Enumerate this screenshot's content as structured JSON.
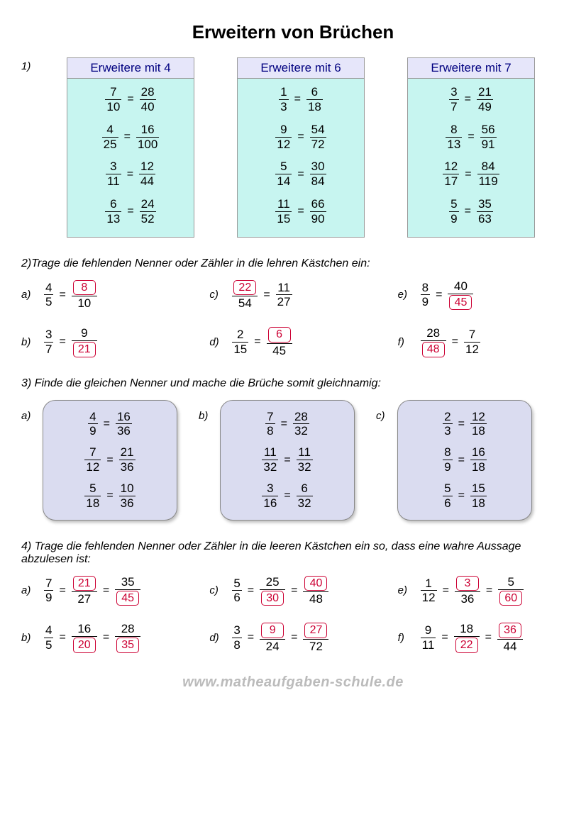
{
  "title": "Erweitern von Brüchen",
  "footer": "www.matheaufgaben-schule.de",
  "section1": {
    "num": "1)",
    "cards": [
      {
        "head": "Erweitere mit 4",
        "rows": [
          {
            "a": {
              "n": "7",
              "d": "10"
            },
            "b": {
              "n": "28",
              "d": "40"
            }
          },
          {
            "a": {
              "n": "4",
              "d": "25"
            },
            "b": {
              "n": "16",
              "d": "100"
            }
          },
          {
            "a": {
              "n": "3",
              "d": "11"
            },
            "b": {
              "n": "12",
              "d": "44"
            }
          },
          {
            "a": {
              "n": "6",
              "d": "13"
            },
            "b": {
              "n": "24",
              "d": "52"
            }
          }
        ]
      },
      {
        "head": "Erweitere mit 6",
        "rows": [
          {
            "a": {
              "n": "1",
              "d": "3"
            },
            "b": {
              "n": "6",
              "d": "18"
            }
          },
          {
            "a": {
              "n": "9",
              "d": "12"
            },
            "b": {
              "n": "54",
              "d": "72"
            }
          },
          {
            "a": {
              "n": "5",
              "d": "14"
            },
            "b": {
              "n": "30",
              "d": "84"
            }
          },
          {
            "a": {
              "n": "11",
              "d": "15"
            },
            "b": {
              "n": "66",
              "d": "90"
            }
          }
        ]
      },
      {
        "head": "Erweitere mit 7",
        "rows": [
          {
            "a": {
              "n": "3",
              "d": "7"
            },
            "b": {
              "n": "21",
              "d": "49"
            }
          },
          {
            "a": {
              "n": "8",
              "d": "13"
            },
            "b": {
              "n": "56",
              "d": "91"
            }
          },
          {
            "a": {
              "n": "12",
              "d": "17"
            },
            "b": {
              "n": "84",
              "d": "119"
            }
          },
          {
            "a": {
              "n": "5",
              "d": "9"
            },
            "b": {
              "n": "35",
              "d": "63"
            }
          }
        ]
      }
    ]
  },
  "section2": {
    "prompt": "2)Trage die fehlenden Nenner oder Zähler in die lehren Kästchen ein:",
    "items": [
      {
        "l": "a)",
        "a": {
          "n": "4",
          "d": "5"
        },
        "b": {
          "n": "8",
          "d": "10",
          "box": "n"
        }
      },
      {
        "l": "c)",
        "a": {
          "n": "22",
          "d": "54",
          "box": "n"
        },
        "b": {
          "n": "11",
          "d": "27"
        }
      },
      {
        "l": "e)",
        "a": {
          "n": "8",
          "d": "9"
        },
        "b": {
          "n": "40",
          "d": "45",
          "box": "d"
        }
      },
      {
        "l": "b)",
        "a": {
          "n": "3",
          "d": "7"
        },
        "b": {
          "n": "9",
          "d": "21",
          "box": "d"
        }
      },
      {
        "l": "d)",
        "a": {
          "n": "2",
          "d": "15"
        },
        "b": {
          "n": "6",
          "d": "45",
          "box": "n"
        }
      },
      {
        "l": "f)",
        "a": {
          "n": "28",
          "d": "48",
          "box": "d"
        },
        "b": {
          "n": "7",
          "d": "12"
        }
      }
    ]
  },
  "section3": {
    "prompt": "3) Finde die gleichen Nenner und mache die Brüche somit gleichnamig:",
    "panels": [
      {
        "l": "a)",
        "rows": [
          {
            "a": {
              "n": "4",
              "d": "9"
            },
            "b": {
              "n": "16",
              "d": "36"
            }
          },
          {
            "a": {
              "n": "7",
              "d": "12"
            },
            "b": {
              "n": "21",
              "d": "36"
            }
          },
          {
            "a": {
              "n": "5",
              "d": "18"
            },
            "b": {
              "n": "10",
              "d": "36"
            }
          }
        ]
      },
      {
        "l": "b)",
        "rows": [
          {
            "a": {
              "n": "7",
              "d": "8"
            },
            "b": {
              "n": "28",
              "d": "32"
            }
          },
          {
            "a": {
              "n": "11",
              "d": "32"
            },
            "b": {
              "n": "11",
              "d": "32"
            }
          },
          {
            "a": {
              "n": "3",
              "d": "16"
            },
            "b": {
              "n": "6",
              "d": "32"
            }
          }
        ]
      },
      {
        "l": "c)",
        "rows": [
          {
            "a": {
              "n": "2",
              "d": "3"
            },
            "b": {
              "n": "12",
              "d": "18"
            }
          },
          {
            "a": {
              "n": "8",
              "d": "9"
            },
            "b": {
              "n": "16",
              "d": "18"
            }
          },
          {
            "a": {
              "n": "5",
              "d": "6"
            },
            "b": {
              "n": "15",
              "d": "18"
            }
          }
        ]
      }
    ]
  },
  "section4": {
    "prompt": "4) Trage die fehlenden Nenner oder Zähler in die leeren Kästchen ein so, dass eine wahre Aussage abzulesen ist:",
    "items": [
      {
        "l": "a)",
        "f": [
          {
            "n": "7",
            "d": "9"
          },
          {
            "n": "21",
            "d": "27",
            "box": "n"
          },
          {
            "n": "35",
            "d": "45",
            "box": "d"
          }
        ]
      },
      {
        "l": "c)",
        "f": [
          {
            "n": "5",
            "d": "6"
          },
          {
            "n": "25",
            "d": "30",
            "box": "d"
          },
          {
            "n": "40",
            "d": "48",
            "box": "n"
          }
        ]
      },
      {
        "l": "e)",
        "f": [
          {
            "n": "1",
            "d": "12"
          },
          {
            "n": "3",
            "d": "36",
            "box": "n"
          },
          {
            "n": "5",
            "d": "60",
            "box": "d"
          }
        ]
      },
      {
        "l": "b)",
        "f": [
          {
            "n": "4",
            "d": "5"
          },
          {
            "n": "16",
            "d": "20",
            "box": "d"
          },
          {
            "n": "28",
            "d": "35",
            "box": "d"
          }
        ]
      },
      {
        "l": "d)",
        "f": [
          {
            "n": "3",
            "d": "8"
          },
          {
            "n": "9",
            "d": "24",
            "box": "n"
          },
          {
            "n": "27",
            "d": "72",
            "box": "n"
          }
        ]
      },
      {
        "l": "f)",
        "f": [
          {
            "n": "9",
            "d": "11"
          },
          {
            "n": "18",
            "d": "22",
            "box": "d"
          },
          {
            "n": "36",
            "d": "44",
            "box": "n"
          }
        ]
      }
    ]
  }
}
